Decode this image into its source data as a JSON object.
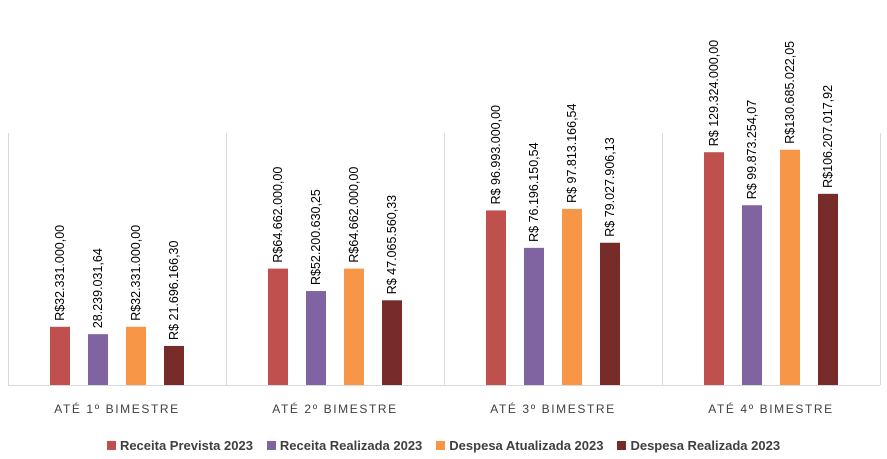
{
  "chart_data": {
    "type": "bar",
    "categories": [
      "ATÉ 1º BIMESTRE",
      "ATÉ 2º BIMESTRE",
      "ATÉ 3º BIMESTRE",
      "ATÉ 4º BIMESTRE"
    ],
    "series": [
      {
        "name": "Receita Prevista 2023",
        "color": "#C0504D",
        "values": [
          32331000.0,
          64662000.0,
          96993000.0,
          129324000.0
        ],
        "labels": [
          "R$32.331.000,00",
          "R$64.662.000,00",
          "R$ 96.993.000,00",
          "R$ 129.324.000,00"
        ]
      },
      {
        "name": "Receita Realizada 2023",
        "color": "#8064A2",
        "values": [
          28239031.64,
          52200630.25,
          76196150.54,
          99873254.07
        ],
        "labels": [
          "28.239.031,64",
          "R$52.200.630,25",
          "R$ 76.196.150,54",
          "R$ 99.873.254,07"
        ]
      },
      {
        "name": "Despesa Atualizada 2023",
        "color": "#F79646",
        "values": [
          32331000.0,
          64662000.0,
          97813166.54,
          130685022.05
        ],
        "labels": [
          "R$32.331.000,00",
          "R$64.662.000,00",
          "R$ 97.813.166,54",
          "R$130.685.022,05"
        ]
      },
      {
        "name": "Despesa Realizada 2023",
        "color": "#772C2A",
        "values": [
          21696166.3,
          47065560.33,
          79027906.13,
          106207017.92
        ],
        "labels": [
          "R$ 21.696.166,30",
          "R$ 47.065.560,33",
          "R$ 79.027.906,13",
          "R$106.207.017,92"
        ]
      }
    ],
    "ylim": [
      0,
      140000000
    ],
    "grid": false,
    "legend_position": "bottom"
  }
}
